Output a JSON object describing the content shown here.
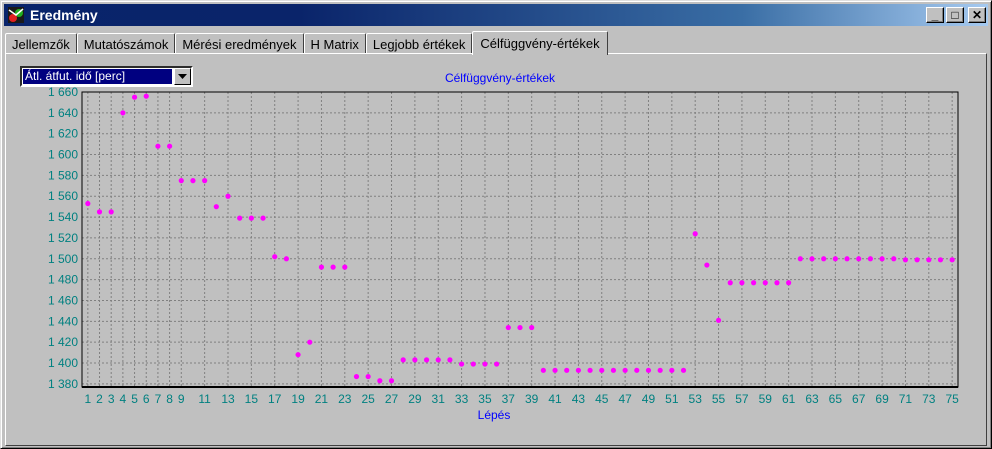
{
  "window": {
    "title": "Eredmény",
    "minimize_label": "_",
    "maximize_label": "□",
    "close_label": "✕",
    "app_icon": "app-logo-icon"
  },
  "tabs": [
    {
      "label": "Jellemzők",
      "active": false
    },
    {
      "label": "Mutatószámok",
      "active": false
    },
    {
      "label": "Mérési eredmények",
      "active": false
    },
    {
      "label": "H Matrix",
      "active": false
    },
    {
      "label": "Legjobb értékek",
      "active": false
    },
    {
      "label": "Célfüggvény-értékek",
      "active": true
    }
  ],
  "selector": {
    "value": "Átl. átfut. idő [perc]",
    "icon": "dropdown-arrow-icon"
  },
  "colors": {
    "point": "#ff00ff",
    "title": "#0000ff",
    "axis_label": "#0000ff",
    "tick_label": "#008080",
    "plot_bg": "#c0c0c0",
    "grid": "#808080"
  },
  "chart_data": {
    "type": "scatter",
    "title": "Célfüggvény-értékek",
    "xlabel": "Lépés",
    "ylabel": "",
    "xlim": [
      0.5,
      75.5
    ],
    "ylim": [
      1377,
      1660
    ],
    "grid": true,
    "x_tick_labels": [
      "1",
      "2",
      "3",
      "4",
      "5",
      "6",
      "7",
      "8",
      "9",
      "11",
      "13",
      "15",
      "17",
      "19",
      "21",
      "23",
      "25",
      "27",
      "29",
      "31",
      "33",
      "35",
      "37",
      "39",
      "41",
      "43",
      "45",
      "47",
      "49",
      "51",
      "53",
      "55",
      "57",
      "59",
      "61",
      "63",
      "65",
      "67",
      "69",
      "71",
      "73",
      "75"
    ],
    "y_tick_labels": [
      "1 380",
      "1 400",
      "1 420",
      "1 440",
      "1 460",
      "1 480",
      "1 500",
      "1 520",
      "1 540",
      "1 560",
      "1 580",
      "1 600",
      "1 620",
      "1 640",
      "1 660"
    ],
    "x_ticks": [
      1,
      2,
      3,
      4,
      5,
      6,
      7,
      8,
      9,
      11,
      13,
      15,
      17,
      19,
      21,
      23,
      25,
      27,
      29,
      31,
      33,
      35,
      37,
      39,
      41,
      43,
      45,
      47,
      49,
      51,
      53,
      55,
      57,
      59,
      61,
      63,
      65,
      67,
      69,
      71,
      73,
      75
    ],
    "y_ticks": [
      1380,
      1400,
      1420,
      1440,
      1460,
      1480,
      1500,
      1520,
      1540,
      1560,
      1580,
      1600,
      1620,
      1640,
      1660
    ],
    "x": [
      1,
      2,
      3,
      4,
      5,
      6,
      7,
      8,
      9,
      10,
      11,
      12,
      13,
      14,
      15,
      16,
      17,
      18,
      19,
      20,
      21,
      22,
      23,
      24,
      25,
      26,
      27,
      28,
      29,
      30,
      31,
      32,
      33,
      34,
      35,
      36,
      37,
      38,
      39,
      40,
      41,
      42,
      43,
      44,
      45,
      46,
      47,
      48,
      49,
      50,
      51,
      52,
      53,
      54,
      55,
      56,
      57,
      58,
      59,
      60,
      61,
      62,
      63,
      64,
      65,
      66,
      67,
      68,
      69,
      70,
      71,
      72,
      73,
      74,
      75
    ],
    "y": [
      1553,
      1545,
      1545,
      1640,
      1655,
      1656,
      1608,
      1608,
      1575,
      1575,
      1575,
      1550,
      1560,
      1539,
      1539,
      1539,
      1502,
      1500,
      1408,
      1420,
      1492,
      1492,
      1492,
      1387,
      1387,
      1383,
      1383,
      1403,
      1403,
      1403,
      1403,
      1403,
      1399,
      1399,
      1399,
      1399,
      1434,
      1434,
      1434,
      1393,
      1393,
      1393,
      1393,
      1393,
      1393,
      1393,
      1393,
      1393,
      1393,
      1393,
      1393,
      1393,
      1524,
      1494,
      1441,
      1477,
      1477,
      1477,
      1477,
      1477,
      1477,
      1500,
      1500,
      1500,
      1500,
      1500,
      1500,
      1500,
      1500,
      1500,
      1499,
      1499,
      1499,
      1499,
      1499
    ]
  }
}
